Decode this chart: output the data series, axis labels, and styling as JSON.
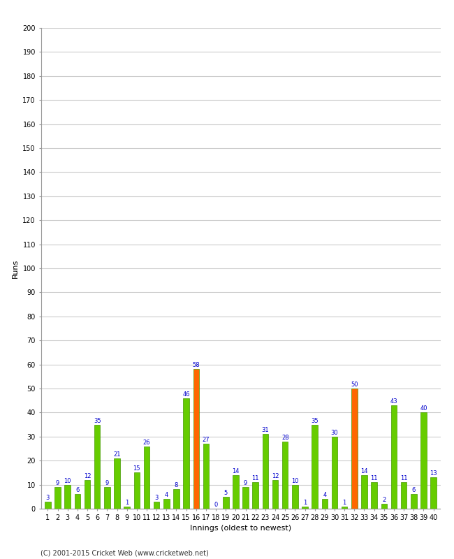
{
  "innings": [
    1,
    2,
    3,
    4,
    5,
    6,
    7,
    8,
    9,
    10,
    11,
    12,
    13,
    14,
    15,
    16,
    17,
    18,
    19,
    20,
    21,
    22,
    23,
    24,
    25,
    26,
    27,
    28,
    29,
    30,
    31,
    32,
    33,
    34,
    35,
    36,
    37,
    38,
    39,
    40
  ],
  "values": [
    3,
    9,
    10,
    6,
    12,
    35,
    9,
    21,
    1,
    15,
    26,
    3,
    4,
    8,
    46,
    58,
    27,
    0,
    5,
    14,
    9,
    11,
    31,
    12,
    28,
    10,
    1,
    35,
    4,
    30,
    1,
    50,
    14,
    11,
    2,
    43,
    11,
    6,
    40,
    13
  ],
  "colors": [
    "#66cc00",
    "#66cc00",
    "#66cc00",
    "#66cc00",
    "#66cc00",
    "#66cc00",
    "#66cc00",
    "#66cc00",
    "#66cc00",
    "#66cc00",
    "#66cc00",
    "#66cc00",
    "#66cc00",
    "#66cc00",
    "#66cc00",
    "#ff6600",
    "#66cc00",
    "#66cc00",
    "#66cc00",
    "#66cc00",
    "#66cc00",
    "#66cc00",
    "#66cc00",
    "#66cc00",
    "#66cc00",
    "#66cc00",
    "#66cc00",
    "#66cc00",
    "#66cc00",
    "#66cc00",
    "#66cc00",
    "#ff6600",
    "#66cc00",
    "#66cc00",
    "#66cc00",
    "#66cc00",
    "#66cc00",
    "#66cc00",
    "#66cc00",
    "#66cc00"
  ],
  "xlabel": "Innings (oldest to newest)",
  "ylabel": "Runs",
  "ylim": [
    0,
    200
  ],
  "yticks": [
    0,
    10,
    20,
    30,
    40,
    50,
    60,
    70,
    80,
    90,
    100,
    110,
    120,
    130,
    140,
    150,
    160,
    170,
    180,
    190,
    200
  ],
  "footer": "(C) 2001-2015 Cricket Web (www.cricketweb.net)",
  "bg_color": "#ffffff",
  "plot_bg_color": "#ffffff",
  "bar_edge_color": "#449900",
  "label_color": "#0000cc",
  "grid_color": "#cccccc",
  "axis_color": "#999999",
  "tick_label_fontsize": 7,
  "ylabel_fontsize": 8,
  "xlabel_fontsize": 8,
  "value_label_fontsize": 6,
  "footer_fontsize": 7,
  "bar_width": 0.6
}
